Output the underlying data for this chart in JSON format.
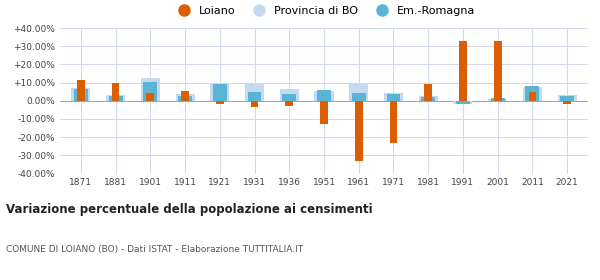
{
  "years": [
    1871,
    1881,
    1901,
    1911,
    1921,
    1931,
    1936,
    1951,
    1961,
    1971,
    1981,
    1991,
    2001,
    2011,
    2021
  ],
  "loiano": [
    11.5,
    10.0,
    4.5,
    5.5,
    -2.0,
    -3.5,
    -3.0,
    -13.0,
    -33.0,
    -23.0,
    9.0,
    33.0,
    33.0,
    5.0,
    -1.5
  ],
  "provincia_bo": [
    7.0,
    3.0,
    12.5,
    3.5,
    10.0,
    9.0,
    6.5,
    5.5,
    9.5,
    4.5,
    2.5,
    -1.5,
    1.0,
    7.5,
    3.0
  ],
  "em_romagna": [
    6.5,
    2.5,
    10.5,
    2.5,
    9.5,
    5.0,
    4.0,
    6.0,
    4.5,
    3.5,
    2.0,
    -1.5,
    1.5,
    8.0,
    2.5
  ],
  "color_loiano": "#d95f02",
  "color_provincia": "#c5daf0",
  "color_emromagna": "#5ab4d6",
  "title": "Variazione percentuale della popolazione ai censimenti",
  "subtitle": "COMUNE DI LOIANO (BO) - Dati ISTAT - Elaborazione TUTTITALIA.IT",
  "legend_labels": [
    "Loiano",
    "Provincia di BO",
    "Em.-Romagna"
  ],
  "ylim": [
    -40,
    40
  ],
  "yticks": [
    -40,
    -30,
    -20,
    -10,
    0,
    10,
    20,
    30,
    40
  ],
  "background_color": "#ffffff",
  "grid_color": "#d0d8e8"
}
